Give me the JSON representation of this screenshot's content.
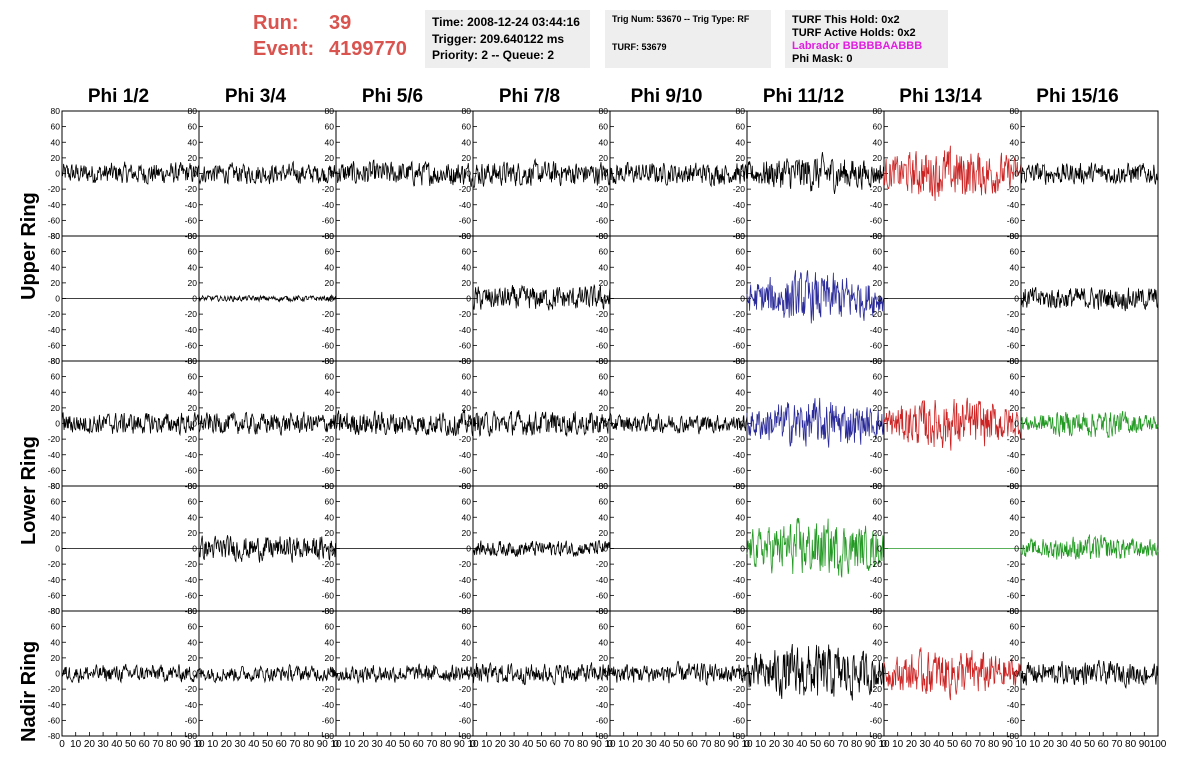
{
  "header": {
    "run_label": "Run:",
    "run_value": "39",
    "event_label": "Event:",
    "event_value": "4199770",
    "time": "Time: 2008-12-24 03:44:16",
    "trigger": "Trigger: 209.640122 ms",
    "priority": "Priority: 2 -- Queue: 2",
    "trig_num": "Trig Num: 53670 -- Trig Type: RF",
    "turf": "TURF: 53679",
    "turf_this_hold": "TURF This Hold: 0x2",
    "turf_active_holds": "TURF Active Holds: 0x2",
    "labrador": "Labrador BBBBBAABBB",
    "phi_mask": "Phi Mask: 0"
  },
  "colors": {
    "header_red": "#d9534f",
    "labrador_magenta": "#e020e0",
    "trace_black": "#000000",
    "trace_red": "#cc2222",
    "trace_blue": "#2a2a9a",
    "trace_green": "#229922"
  },
  "chart_data": {
    "type": "line",
    "columns": [
      "Phi 1/2",
      "Phi 3/4",
      "Phi 5/6",
      "Phi 7/8",
      "Phi 9/10",
      "Phi 11/12",
      "Phi 13/14",
      "Phi 15/16"
    ],
    "row_groups": [
      "Upper Ring",
      "Lower Ring",
      "Nadir Ring"
    ],
    "xlim": [
      0,
      100
    ],
    "ylim": [
      -80,
      80
    ],
    "y_ticks": [
      -80,
      -60,
      -40,
      -20,
      0,
      20,
      40,
      60,
      80
    ],
    "x_ticks": [
      "0",
      "10",
      "20",
      "30",
      "40",
      "50",
      "60",
      "70",
      "80",
      "90",
      "10"
    ],
    "last_x_ticks": [
      "10",
      "20",
      "30",
      "40",
      "50",
      "60",
      "70",
      "80",
      "90",
      "100"
    ],
    "grid": false,
    "rows": [
      [
        {
          "amp": 15,
          "color": "black"
        },
        {
          "amp": 14,
          "color": "black"
        },
        {
          "amp": 17,
          "color": "black"
        },
        {
          "amp": 17,
          "color": "black"
        },
        {
          "amp": 15,
          "color": "black"
        },
        {
          "amp": 22,
          "color": "black"
        },
        {
          "amp": 30,
          "color": "red"
        },
        {
          "amp": 15,
          "color": "black"
        }
      ],
      [
        {
          "amp": 0,
          "color": "black"
        },
        {
          "amp": 4,
          "color": "black"
        },
        {
          "amp": 0,
          "color": "black"
        },
        {
          "amp": 17,
          "color": "black"
        },
        {
          "amp": 0,
          "color": "black"
        },
        {
          "amp": 30,
          "color": "blue"
        },
        {
          "amp": 0,
          "color": "black"
        },
        {
          "amp": 16,
          "color": "black"
        }
      ],
      [
        {
          "amp": 15,
          "color": "black"
        },
        {
          "amp": 15,
          "color": "black"
        },
        {
          "amp": 17,
          "color": "black"
        },
        {
          "amp": 17,
          "color": "black"
        },
        {
          "amp": 13,
          "color": "black"
        },
        {
          "amp": 28,
          "color": "blue"
        },
        {
          "amp": 30,
          "color": "red"
        },
        {
          "amp": 16,
          "color": "green"
        }
      ],
      [
        {
          "amp": 0,
          "color": "black"
        },
        {
          "amp": 17,
          "color": "black"
        },
        {
          "amp": 0,
          "color": "black"
        },
        {
          "amp": 11,
          "color": "black"
        },
        {
          "amp": 0,
          "color": "black"
        },
        {
          "amp": 33,
          "color": "green"
        },
        {
          "amp": 0,
          "color": "green"
        },
        {
          "amp": 15,
          "color": "green"
        }
      ],
      [
        {
          "amp": 12,
          "color": "black"
        },
        {
          "amp": 11,
          "color": "black"
        },
        {
          "amp": 12,
          "color": "black"
        },
        {
          "amp": 14,
          "color": "black"
        },
        {
          "amp": 14,
          "color": "black"
        },
        {
          "amp": 33,
          "color": "black"
        },
        {
          "amp": 28,
          "color": "red"
        },
        {
          "amp": 16,
          "color": "black"
        }
      ]
    ]
  }
}
